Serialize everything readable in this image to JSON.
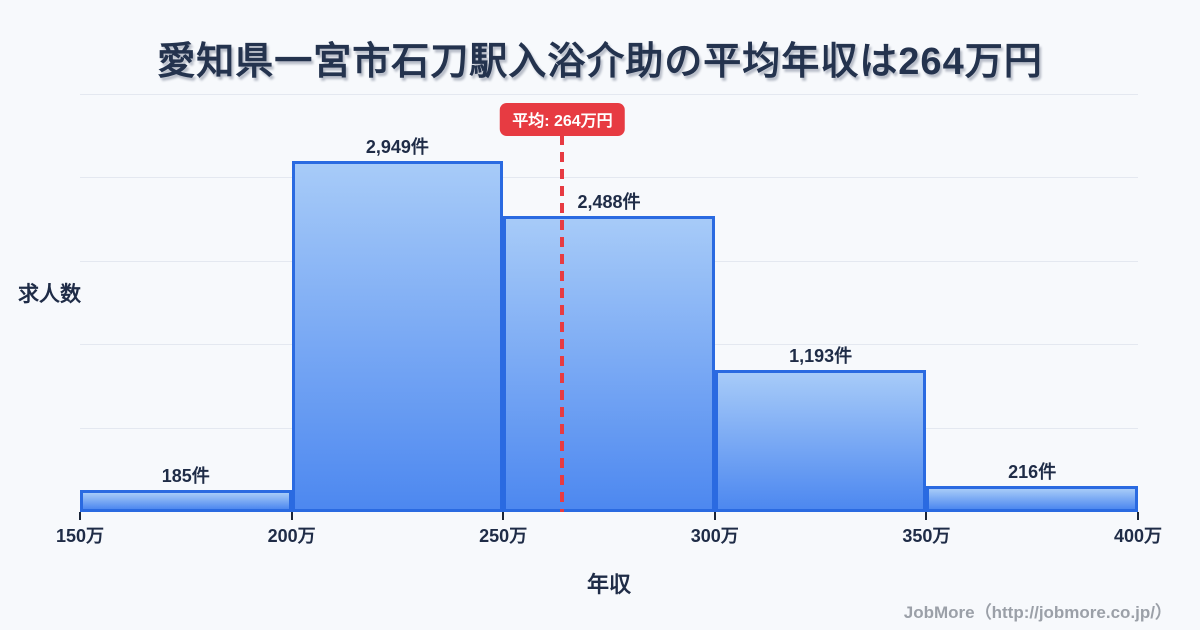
{
  "chart_data": {
    "type": "bar",
    "subtype": "histogram",
    "title": "愛知県一宮市石刀駅入浴介助の平均年収は264万円",
    "xlabel": "年収",
    "ylabel": "求人数",
    "bin_edges": [
      "150万",
      "200万",
      "250万",
      "300万",
      "350万",
      "400万"
    ],
    "bin_edges_values": [
      150,
      200,
      250,
      300,
      350,
      400
    ],
    "values": [
      185,
      2949,
      2488,
      1193,
      216
    ],
    "value_labels": [
      "185件",
      "2,949件",
      "2,488件",
      "1,193件",
      "216件"
    ],
    "average": {
      "value": 264,
      "label": "平均: 264万円"
    },
    "ylim": [
      0,
      3500
    ],
    "gridline_step": 700,
    "grid": "horizontal",
    "legend": "none",
    "colors": {
      "background": "#f7f9fc",
      "text": "#1f2c47",
      "gridline": "#e4e8f0",
      "bar_fill_top": "#a7cbf8",
      "bar_fill_bottom": "#4d88f0",
      "bar_border": "#2a6ae1",
      "average_red": "#e73b42",
      "footer_text": "#9ba0a8"
    }
  },
  "footer": {
    "credit": "JobMore（http://jobmore.co.jp/）"
  }
}
